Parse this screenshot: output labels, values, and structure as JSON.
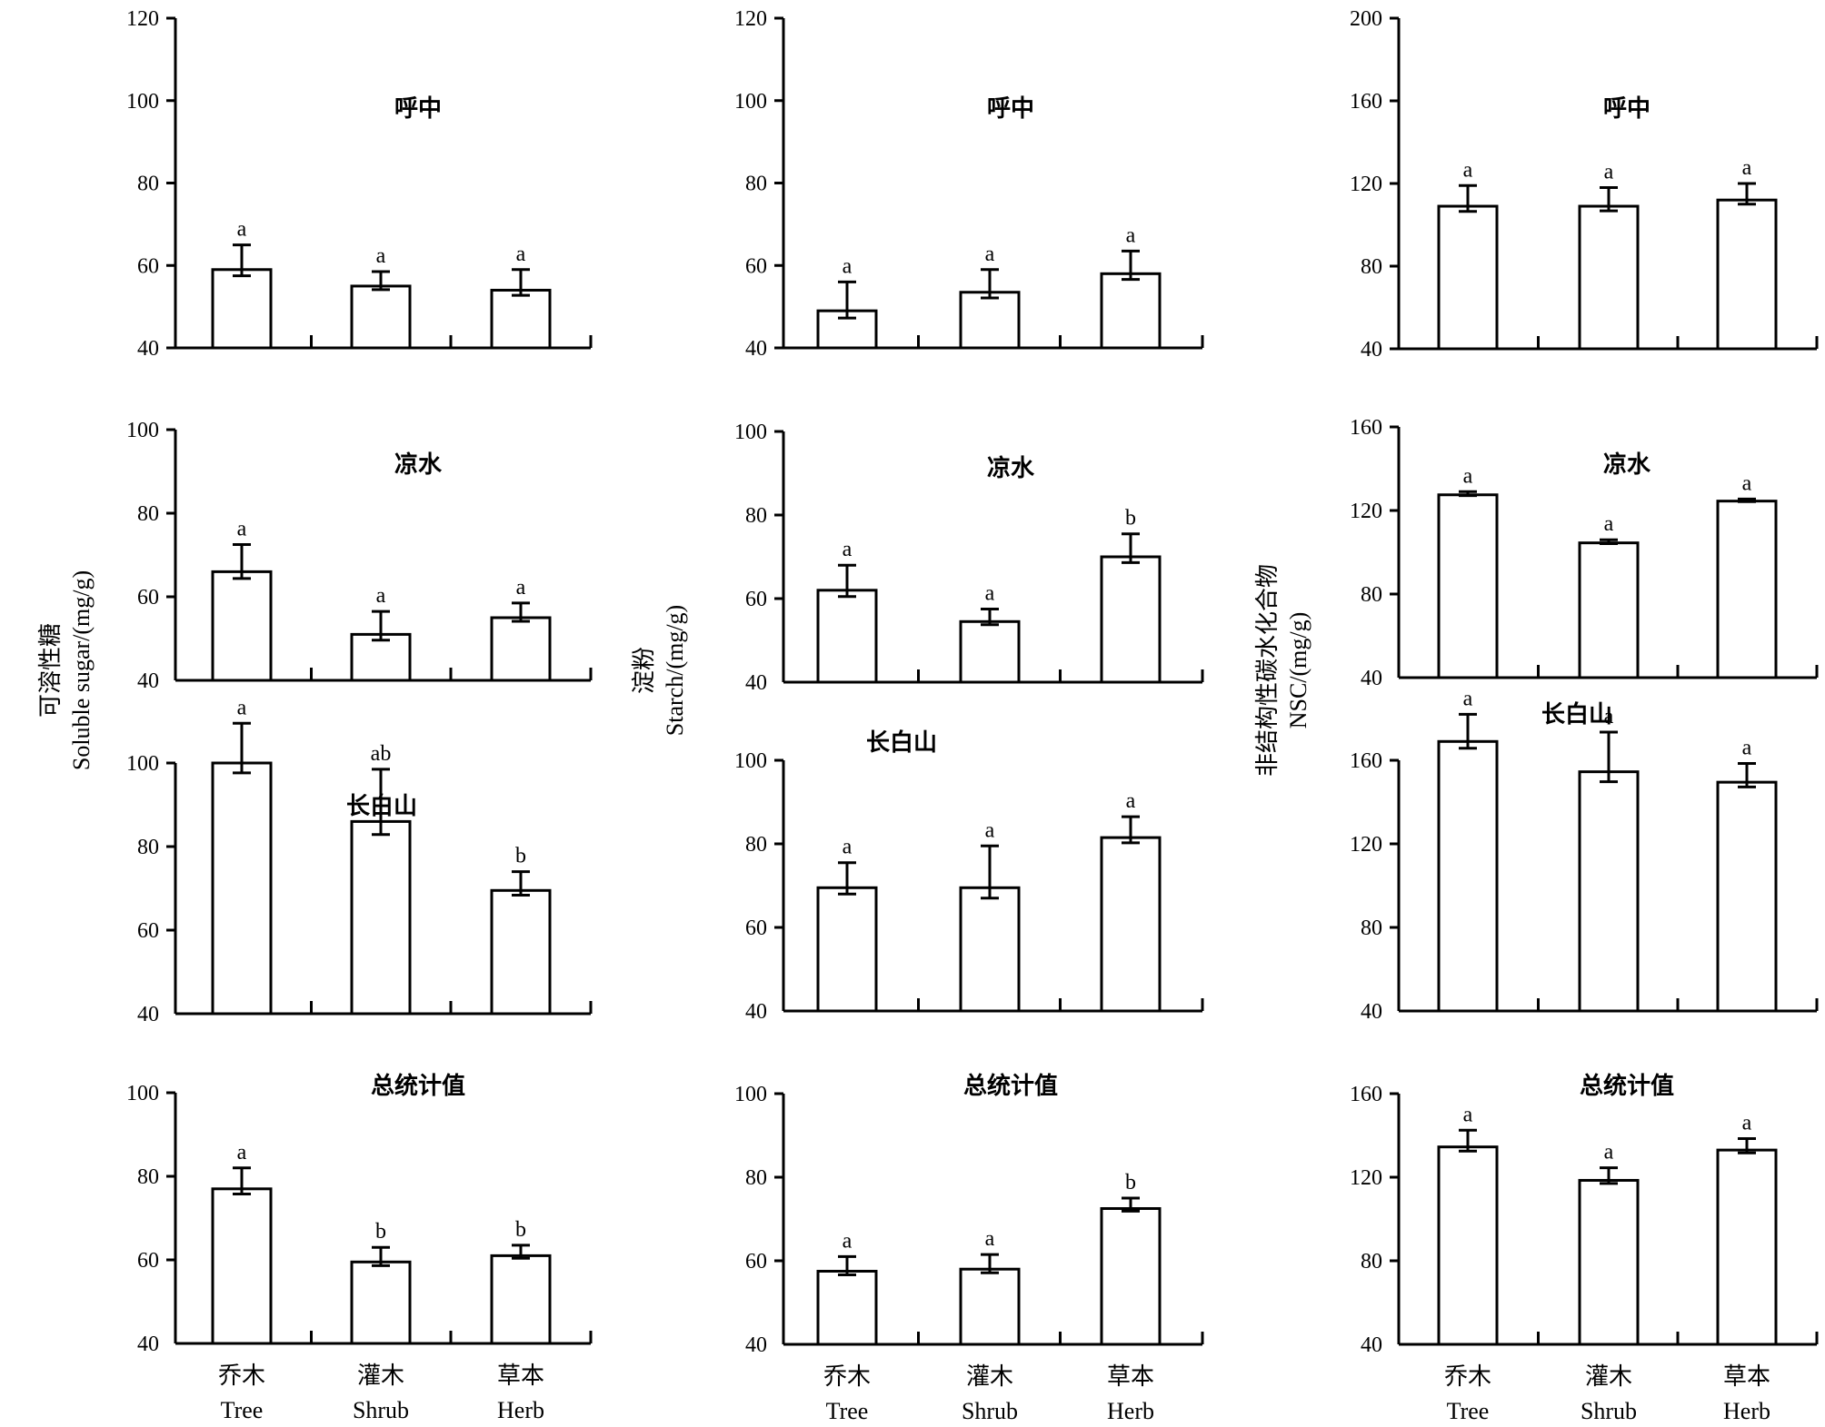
{
  "categories": [
    {
      "cn": "乔木",
      "en": "Tree"
    },
    {
      "cn": "灌木",
      "en": "Shrub"
    },
    {
      "cn": "草本",
      "en": "Herb"
    }
  ],
  "chart_data": [
    {
      "type": "bar",
      "ylabel_cn": "可溶性糖",
      "ylabel_en": "Soluble sugar/(mg/g)",
      "categories": [
        "乔木 Tree",
        "灌木 Shrub",
        "草本 Herb"
      ],
      "panels": [
        {
          "title": "呼中",
          "ylim": [
            40,
            120
          ],
          "yticks": [
            40,
            60,
            80,
            100,
            120
          ],
          "values": [
            59,
            55,
            54
          ],
          "errors": [
            6,
            3.5,
            5
          ],
          "sig": [
            "a",
            "a",
            "a"
          ]
        },
        {
          "title": "凉水",
          "ylim": [
            40,
            100
          ],
          "yticks": [
            40,
            60,
            80,
            100
          ],
          "values": [
            66,
            51,
            55
          ],
          "errors": [
            6.5,
            5.5,
            3.5
          ],
          "sig": [
            "a",
            "a",
            "a"
          ]
        },
        {
          "title": "长白山",
          "ylim": [
            40,
            100
          ],
          "yticks": [
            40,
            60,
            80,
            100
          ],
          "values": [
            100,
            86,
            69.5
          ],
          "errors": [
            9.5,
            12.5,
            4.5
          ],
          "sig": [
            "a",
            "ab",
            "b"
          ]
        },
        {
          "title": "总统计值",
          "ylim": [
            40,
            100
          ],
          "yticks": [
            40,
            60,
            80,
            100
          ],
          "values": [
            77,
            59.5,
            61
          ],
          "errors": [
            5,
            3.5,
            2.5
          ],
          "sig": [
            "a",
            "b",
            "b"
          ]
        }
      ]
    },
    {
      "type": "bar",
      "ylabel_cn": "淀粉",
      "ylabel_en": "Starch/(mg/g)",
      "categories": [
        "乔木 Tree",
        "灌木 Shrub",
        "草本 Herb"
      ],
      "panels": [
        {
          "title": "呼中",
          "ylim": [
            40,
            120
          ],
          "yticks": [
            40,
            60,
            80,
            100,
            120
          ],
          "values": [
            49,
            53.5,
            58
          ],
          "errors": [
            7,
            5.5,
            5.5
          ],
          "sig": [
            "a",
            "a",
            "a"
          ]
        },
        {
          "title": "凉水",
          "ylim": [
            40,
            100
          ],
          "yticks": [
            40,
            60,
            80,
            100
          ],
          "values": [
            62,
            54.5,
            70
          ],
          "errors": [
            6,
            3,
            5.5
          ],
          "sig": [
            "a",
            "a",
            "b"
          ]
        },
        {
          "title": "长白山",
          "ylim": [
            40,
            100
          ],
          "yticks": [
            40,
            60,
            80,
            100
          ],
          "values": [
            69.5,
            69.5,
            81.5
          ],
          "errors": [
            6,
            10,
            5
          ],
          "sig": [
            "a",
            "a",
            "a"
          ]
        },
        {
          "title": "总统计值",
          "ylim": [
            40,
            100
          ],
          "yticks": [
            40,
            60,
            80,
            100
          ],
          "values": [
            57.5,
            58,
            72.5
          ],
          "errors": [
            3.5,
            3.5,
            2.5
          ],
          "sig": [
            "a",
            "a",
            "b"
          ]
        }
      ]
    },
    {
      "type": "bar",
      "ylabel_cn": "非结构性碳水化合物",
      "ylabel_en": "NSC/(mg/g)",
      "categories": [
        "乔木 Tree",
        "灌木 Shrub",
        "草本 Herb"
      ],
      "panels": [
        {
          "title": "呼中",
          "ylim": [
            40,
            200
          ],
          "yticks": [
            40,
            80,
            120,
            160,
            200
          ],
          "values": [
            109,
            109,
            112
          ],
          "errors": [
            10,
            9,
            8
          ],
          "sig": [
            "a",
            "a",
            "a"
          ]
        },
        {
          "title": "凉水",
          "ylim": [
            40,
            160
          ],
          "yticks": [
            40,
            80,
            120,
            160
          ],
          "values": [
            127.5,
            104.5,
            124.5
          ],
          "errors": [
            1.5,
            1.5,
            1
          ],
          "sig": [
            "a",
            "a",
            "a"
          ]
        },
        {
          "title": "长白山",
          "ylim": [
            40,
            160
          ],
          "yticks": [
            40,
            80,
            120,
            160
          ],
          "values": [
            169,
            154.5,
            149.5
          ],
          "errors": [
            13,
            19,
            9
          ],
          "sig": [
            "a",
            "a",
            "a"
          ]
        },
        {
          "title": "总统计值",
          "ylim": [
            40,
            160
          ],
          "yticks": [
            40,
            80,
            120,
            160
          ],
          "values": [
            134.5,
            118.5,
            133
          ],
          "errors": [
            8,
            6,
            5.5
          ],
          "sig": [
            "a",
            "a",
            "a"
          ]
        }
      ]
    }
  ]
}
